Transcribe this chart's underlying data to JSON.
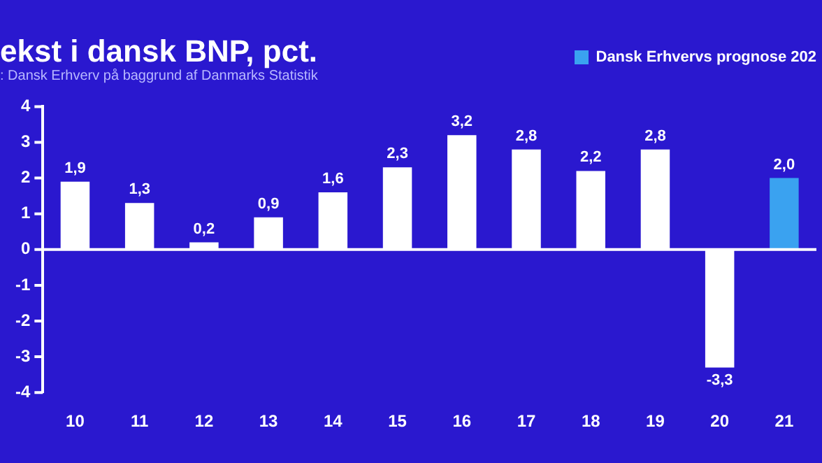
{
  "chart_data": {
    "type": "bar",
    "title": "ekst i dansk BNP, pct.",
    "subtitle": ": Dansk Erhverv på baggrund af Danmarks Statistik",
    "categories": [
      "10",
      "11",
      "12",
      "13",
      "14",
      "15",
      "16",
      "17",
      "18",
      "19",
      "20",
      "21"
    ],
    "series": [
      {
        "color": "#ffffff",
        "values": [
          1.9,
          1.3,
          0.2,
          0.9,
          1.6,
          2.3,
          3.2,
          2.8,
          2.2,
          2.8,
          -3.3,
          null
        ],
        "value_labels": [
          "1,9",
          "1,3",
          "0,2",
          "0,9",
          "1,6",
          "2,3",
          "3,2",
          "2,8",
          "2,2",
          "2,8",
          "-3,3",
          null
        ]
      },
      {
        "name": "Dansk Erhvervs prognose 202",
        "color": "#3aa2f0",
        "values": [
          null,
          null,
          null,
          null,
          null,
          null,
          null,
          null,
          null,
          null,
          null,
          2.0
        ],
        "value_labels": [
          null,
          null,
          null,
          null,
          null,
          null,
          null,
          null,
          null,
          null,
          null,
          "2,0"
        ]
      }
    ],
    "ylim": [
      -4,
      4
    ],
    "yticks": [
      -4,
      -3,
      -2,
      -1,
      0,
      1,
      2,
      3,
      4
    ],
    "ref_lines": [
      {
        "axis": "y",
        "value": 0,
        "color": "#ffffff"
      }
    ],
    "grid": false,
    "legend": "top right"
  }
}
